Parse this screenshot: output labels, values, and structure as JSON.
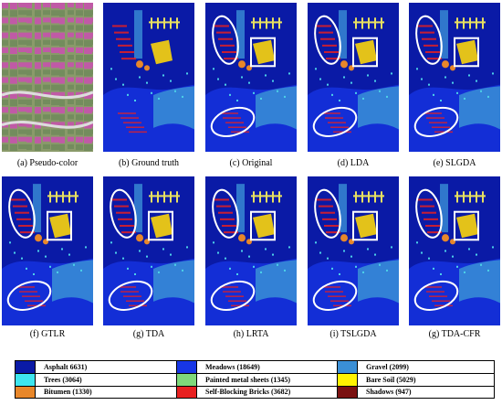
{
  "figure": {
    "row1_captions": [
      "(a) Pseudo-color",
      "(b) Ground truth",
      "(c)  Original",
      "(d) LDA",
      "(e) SLGDA"
    ],
    "row2_captions": [
      "(f) GTLR",
      "(g) TDA",
      "(h) LRTA",
      "(i) TSLGDA",
      "(g) TDA-CFR"
    ],
    "legend": [
      {
        "label": "Asphalt  6631)",
        "color": "#0a1aa6"
      },
      {
        "label": "Meadows   (18649)",
        "color": "#1736e6"
      },
      {
        "label": "Gravel   (2099)",
        "color": "#3a8fd6"
      },
      {
        "label": "Trees   (3064)",
        "color": "#3ee6ef"
      },
      {
        "label": "Painted metal sheets   (1345)",
        "color": "#7fd87a"
      },
      {
        "label": "Bare Soil (5029)",
        "color": "#fff200"
      },
      {
        "label": "Bitumen (1330)",
        "color": "#e8872a"
      },
      {
        "label": "Self-Blocking Bricks  (3682)",
        "color": "#e82020"
      },
      {
        "label": "Shadows (947)",
        "color": "#7a1010"
      }
    ],
    "colors": {
      "background_class": "#0a1aa6",
      "meadows": "#1736e6",
      "gravel": "#3a8fd6",
      "bare_soil": "#e3c21a",
      "bitumen": "#e8872a",
      "bricks": "#e82020",
      "highlight_ellipse": "#ffffff"
    }
  }
}
